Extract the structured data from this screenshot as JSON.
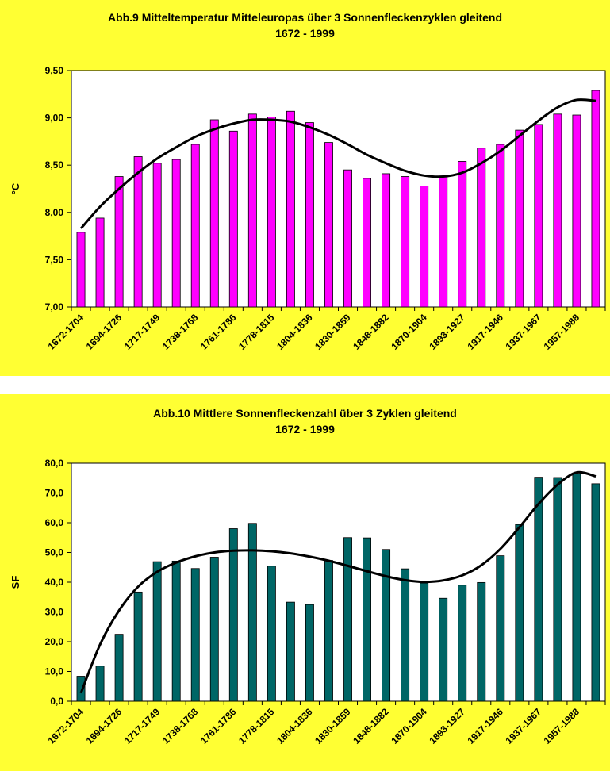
{
  "colors": {
    "panel_bg": "#ffff33",
    "plot_bg": "#ffffff",
    "bar1": "#ff00ff",
    "bar2": "#006666",
    "trend": "#000000"
  },
  "chart_data": [
    {
      "type": "bar",
      "title": "Abb.9  Mitteltemperatur Mitteleuropas über 3 Sonnenfleckenzyklen gleitend",
      "subtitle": "1672 - 1999",
      "xlabel": "",
      "ylabel": "°C",
      "ylim": [
        7.0,
        9.5
      ],
      "yticks": [
        "7,00",
        "7,50",
        "8,00",
        "8,50",
        "9,00",
        "9,50"
      ],
      "grid": false,
      "legend": "none",
      "categories": [
        "1672-1704",
        "",
        "1694-1726",
        "",
        "1717-1749",
        "",
        "1738-1768",
        "",
        "1761-1786",
        "",
        "1778-1815",
        "",
        "1804-1836",
        "",
        "1830-1859",
        "",
        "1848-1882",
        "",
        "1870-1904",
        "",
        "1893-1927",
        "",
        "1917-1946",
        "",
        "1937-1967",
        "",
        "1957-1988",
        ""
      ],
      "tick_labels": [
        "1672-1704",
        "1694-1726",
        "1717-1749",
        "1738-1768",
        "1761-1786",
        "1778-1815",
        "1804-1836",
        "1830-1859",
        "1848-1882",
        "1870-1904",
        "1893-1927",
        "1917-1946",
        "1937-1967",
        "1957-1988"
      ],
      "values": [
        7.79,
        7.94,
        8.38,
        8.59,
        8.52,
        8.56,
        8.72,
        8.98,
        8.86,
        9.04,
        9.01,
        9.07,
        8.95,
        8.74,
        8.45,
        8.36,
        8.41,
        8.38,
        8.28,
        8.38,
        8.54,
        8.68,
        8.72,
        8.87,
        8.93,
        9.04,
        9.03,
        9.29
      ],
      "trend": [
        7.83,
        8.06,
        8.25,
        8.42,
        8.57,
        8.69,
        8.8,
        8.88,
        8.94,
        8.98,
        8.98,
        8.96,
        8.9,
        8.82,
        8.72,
        8.61,
        8.52,
        8.44,
        8.39,
        8.38,
        8.42,
        8.52,
        8.65,
        8.81,
        8.97,
        9.11,
        9.19,
        9.18
      ]
    },
    {
      "type": "bar",
      "title": "Abb.10  Mittlere Sonnenfleckenzahl über 3 Zyklen gleitend",
      "subtitle": "1672 - 1999",
      "xlabel": "",
      "ylabel": "SF",
      "ylim": [
        0,
        80
      ],
      "yticks": [
        "0,0",
        "10,0",
        "20,0",
        "30,0",
        "40,0",
        "50,0",
        "60,0",
        "70,0",
        "80,0"
      ],
      "grid": false,
      "legend": "none",
      "categories": [
        "1672-1704",
        "",
        "1694-1726",
        "",
        "1717-1749",
        "",
        "1738-1768",
        "",
        "1761-1786",
        "",
        "1778-1815",
        "",
        "1804-1836",
        "",
        "1830-1859",
        "",
        "1848-1882",
        "",
        "1870-1904",
        "",
        "1893-1927",
        "",
        "1917-1946",
        "",
        "1937-1967",
        "",
        "1957-1988",
        ""
      ],
      "tick_labels": [
        "1672-1704",
        "1694-1726",
        "1717-1749",
        "1738-1768",
        "1761-1786",
        "1778-1815",
        "1804-1836",
        "1830-1859",
        "1848-1882",
        "1870-1904",
        "1893-1927",
        "1917-1946",
        "1937-1967",
        "1957-1988"
      ],
      "values": [
        8.4,
        11.8,
        22.5,
        36.7,
        46.9,
        47.1,
        44.6,
        48.4,
        58.0,
        59.8,
        45.4,
        33.3,
        32.5,
        47.3,
        55.0,
        54.9,
        51.0,
        44.5,
        39.7,
        34.6,
        39.0,
        39.9,
        48.9,
        59.4,
        75.3,
        75.2,
        76.4,
        73.1
      ],
      "trend": [
        2.7,
        19.0,
        30.5,
        38.5,
        43.5,
        46.6,
        48.7,
        50.0,
        50.6,
        50.7,
        50.4,
        49.7,
        48.6,
        47.2,
        45.5,
        43.7,
        42.0,
        40.7,
        40.1,
        40.6,
        42.3,
        45.7,
        51.2,
        58.5,
        66.3,
        72.8,
        76.9,
        75.6
      ]
    }
  ]
}
